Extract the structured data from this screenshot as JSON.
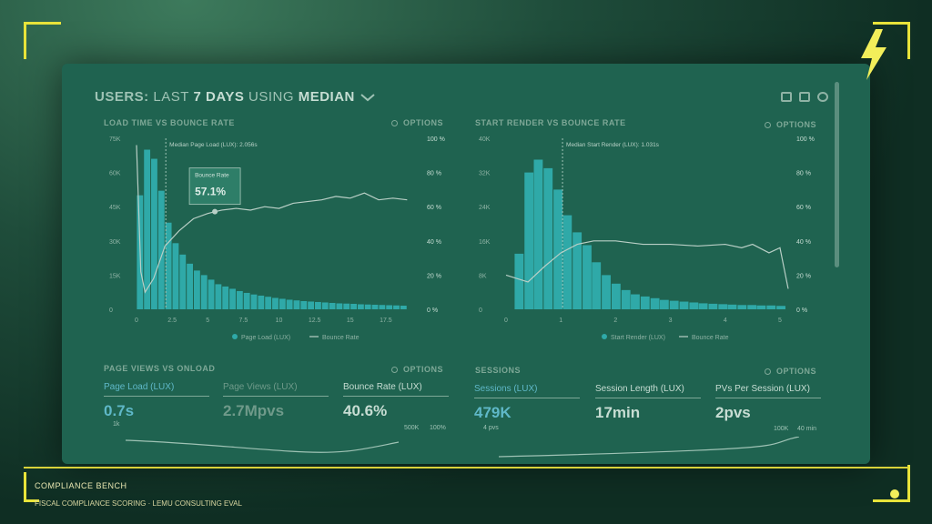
{
  "header": {
    "users": "USERS:",
    "last": "LAST",
    "days": "7 DAYS",
    "using": "USING",
    "median": "MEDIAN"
  },
  "overlay": {
    "title": "COMPLIANCE BENCH",
    "subtitle": "FISCAL COMPLIANCE SCORING · LEMU CONSULTING EVAL"
  },
  "colors": {
    "bar": "#2fa9a8",
    "line": "#b9cfc6",
    "accent": "#e8e33a"
  },
  "icons": [
    "monitor-icon",
    "image-icon",
    "help-icon",
    "lightning-icon",
    "chevron-down-icon",
    "gear-icon"
  ],
  "chart_data": [
    {
      "type": "bar",
      "title": "LOAD TIME VS BOUNCE RATE",
      "options_label": "OPTIONS",
      "y_ticks": [
        "75K",
        "60K",
        "45K",
        "30K",
        "15K",
        "0"
      ],
      "y2_ticks": [
        "100 %",
        "80 %",
        "60 %",
        "40 %",
        "20 %",
        "0 %"
      ],
      "x_ticks": [
        "0",
        "2.5",
        "5",
        "7.5",
        "10",
        "12.5",
        "15",
        "17.5"
      ],
      "xlim": [
        0,
        20
      ],
      "ylim": [
        0,
        75000
      ],
      "bar_width": 0.5,
      "x": [
        0,
        0.5,
        1,
        1.5,
        2,
        2.5,
        3,
        3.5,
        4,
        4.5,
        5,
        5.5,
        6,
        6.5,
        7,
        7.5,
        8,
        8.5,
        9,
        9.5,
        10,
        10.5,
        11,
        11.5,
        12,
        12.5,
        13,
        13.5,
        14,
        14.5,
        15,
        15.5,
        16,
        16.5,
        17,
        17.5,
        18,
        18.5
      ],
      "series": [
        {
          "name": "Page Load (LUX)",
          "values": [
            50000,
            70000,
            66000,
            52000,
            38000,
            29000,
            24000,
            20000,
            17000,
            15000,
            13000,
            11000,
            10000,
            9000,
            8000,
            7200,
            6500,
            6000,
            5500,
            5000,
            4600,
            4200,
            3900,
            3600,
            3400,
            3200,
            3000,
            2800,
            2600,
            2500,
            2400,
            2200,
            2100,
            2000,
            1900,
            1800,
            1700,
            1600
          ]
        },
        {
          "name": "Bounce Rate",
          "axis": "right",
          "x": [
            0,
            0.3,
            0.6,
            1.2,
            2,
            3,
            4,
            5,
            5.5,
            6,
            7,
            8,
            9,
            10,
            11,
            12,
            13,
            14,
            15,
            16,
            17,
            18,
            19
          ],
          "values": [
            96,
            22,
            10,
            18,
            37,
            46,
            53,
            56,
            57.1,
            58,
            59,
            58,
            60,
            59,
            62,
            63,
            64,
            66,
            65,
            68,
            64,
            65,
            64
          ]
        }
      ],
      "annotation": {
        "label": "Median Page Load (LUX): 2.056s",
        "x": 2.056
      },
      "tooltip": {
        "label": "Bounce Rate",
        "value": "57.1%",
        "x": 5.5,
        "y": 57.1
      },
      "legend": [
        "Page Load (LUX)",
        "Bounce Rate"
      ]
    },
    {
      "type": "bar",
      "title": "START RENDER VS BOUNCE RATE",
      "options_label": "OPTIONS",
      "y_ticks": [
        "40K",
        "32K",
        "24K",
        "16K",
        "8K",
        "0"
      ],
      "y2_ticks": [
        "100 %",
        "80 %",
        "60 %",
        "40 %",
        "20 %",
        "0 %"
      ],
      "x_ticks": [
        "0",
        "1",
        "2",
        "3",
        "4",
        "5"
      ],
      "xlim": [
        0,
        5.2
      ],
      "ylim": [
        0,
        40000
      ],
      "bar_width": 0.18,
      "x": [
        0.15,
        0.33,
        0.5,
        0.68,
        0.86,
        1.03,
        1.21,
        1.39,
        1.56,
        1.74,
        1.92,
        2.1,
        2.27,
        2.45,
        2.63,
        2.8,
        2.98,
        3.16,
        3.34,
        3.51,
        3.69,
        3.87,
        4.04,
        4.22,
        4.4,
        4.57,
        4.75,
        4.93
      ],
      "series": [
        {
          "name": "Start Render (LUX)",
          "values": [
            13000,
            32000,
            35000,
            33000,
            28000,
            22000,
            18000,
            15000,
            11000,
            8000,
            6000,
            4500,
            3500,
            3000,
            2600,
            2200,
            2000,
            1800,
            1600,
            1400,
            1300,
            1200,
            1100,
            1000,
            1000,
            900,
            900,
            800
          ]
        },
        {
          "name": "Bounce Rate",
          "axis": "right",
          "x": [
            0,
            0.4,
            0.7,
            1,
            1.3,
            1.6,
            2,
            2.5,
            3,
            3.5,
            4,
            4.3,
            4.5,
            4.8,
            5,
            5.15
          ],
          "values": [
            20,
            16,
            25,
            33,
            38,
            40,
            40,
            38,
            38,
            37,
            38,
            36,
            38,
            33,
            36,
            12
          ]
        }
      ],
      "annotation": {
        "label": "Median Start Render (LUX): 1.031s",
        "x": 1.031
      },
      "legend": [
        "Start Render (LUX)",
        "Bounce Rate"
      ]
    }
  ],
  "panels": {
    "pageviews": {
      "title": "PAGE VIEWS VS ONLOAD",
      "options": "OPTIONS",
      "metrics": [
        {
          "label": "Page Load (LUX)",
          "value": "0.7s"
        },
        {
          "label": "Page Views (LUX)",
          "value": "2.7Mpvs"
        },
        {
          "label": "Bounce Rate (LUX)",
          "value": "40.6%"
        }
      ],
      "axis_small": [
        "500K",
        "100%"
      ],
      "tick_1k": "1k"
    },
    "sessions": {
      "title": "SESSIONS",
      "options": "OPTIONS",
      "metrics": [
        {
          "label": "Sessions (LUX)",
          "value": "479K",
          "sub": "4 pvs"
        },
        {
          "label": "Session Length (LUX)",
          "value": "17min"
        },
        {
          "label": "PVs Per Session (LUX)",
          "value": "2pvs"
        }
      ],
      "axis_small": [
        "100K",
        "40 min"
      ]
    }
  }
}
